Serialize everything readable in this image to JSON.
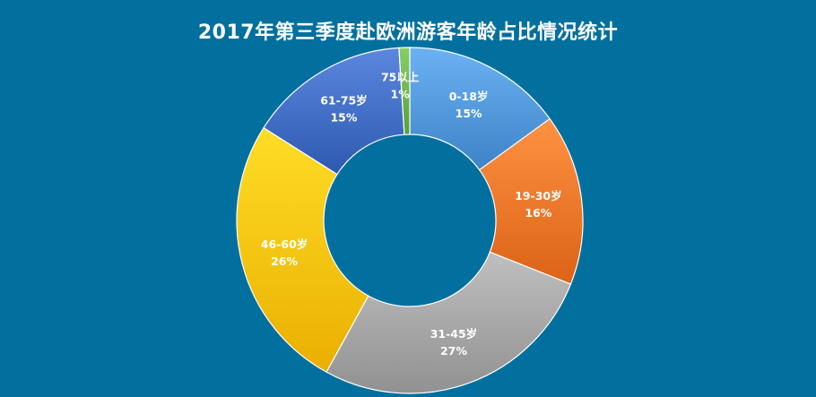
{
  "chart_data": {
    "type": "pie",
    "variant": "donut",
    "title": "2017年第三季度赴欧洲游客年龄占比情况统计",
    "categories": [
      "0-18岁",
      "19-30岁",
      "31-45岁",
      "46-60岁",
      "61-75岁",
      "75以上"
    ],
    "values": [
      15,
      16,
      27,
      26,
      15,
      1
    ],
    "value_labels": [
      "15%",
      "16%",
      "27%",
      "26%",
      "15%",
      "1%"
    ],
    "colors": [
      "#4F96D8",
      "#ED7527",
      "#A3A3A3",
      "#FCC10B",
      "#3F6BC2",
      "#6BB24A"
    ],
    "legend": "none",
    "background": "#02709E"
  }
}
